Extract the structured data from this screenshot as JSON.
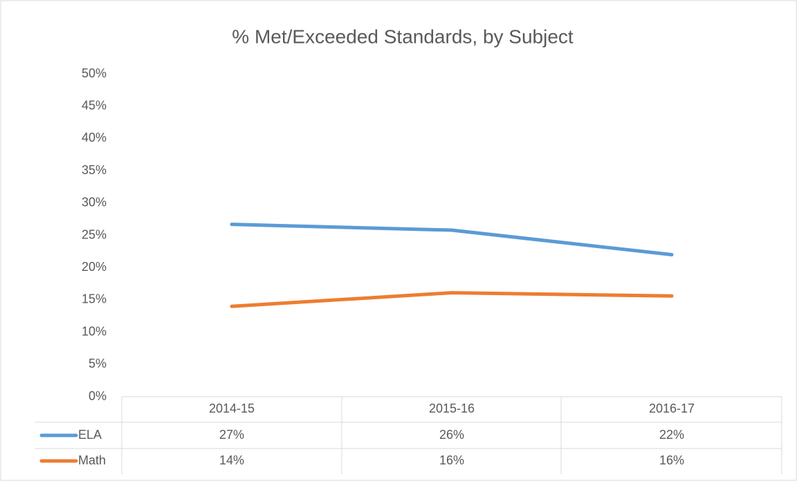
{
  "chart_data": {
    "type": "line",
    "title": "% Met/Exceeded Standards, by Subject",
    "categories": [
      "2014-15",
      "2015-16",
      "2016-17"
    ],
    "series": [
      {
        "name": "ELA",
        "color": "#5b9bd5",
        "values": [
          26.7,
          25.8,
          22.0
        ],
        "value_labels": [
          "27%",
          "26%",
          "22%"
        ]
      },
      {
        "name": "Math",
        "color": "#ed7d31",
        "values": [
          14.0,
          16.1,
          15.6
        ],
        "value_labels": [
          "14%",
          "16%",
          "16%"
        ]
      }
    ],
    "ylim": [
      0,
      50
    ],
    "yticks": [
      {
        "value": 0,
        "label": "0%"
      },
      {
        "value": 5,
        "label": "5%"
      },
      {
        "value": 10,
        "label": "10%"
      },
      {
        "value": 15,
        "label": "15%"
      },
      {
        "value": 20,
        "label": "20%"
      },
      {
        "value": 25,
        "label": "25%"
      },
      {
        "value": 30,
        "label": "30%"
      },
      {
        "value": 35,
        "label": "35%"
      },
      {
        "value": 40,
        "label": "40%"
      },
      {
        "value": 45,
        "label": "45%"
      },
      {
        "value": 50,
        "label": "50%"
      }
    ]
  }
}
